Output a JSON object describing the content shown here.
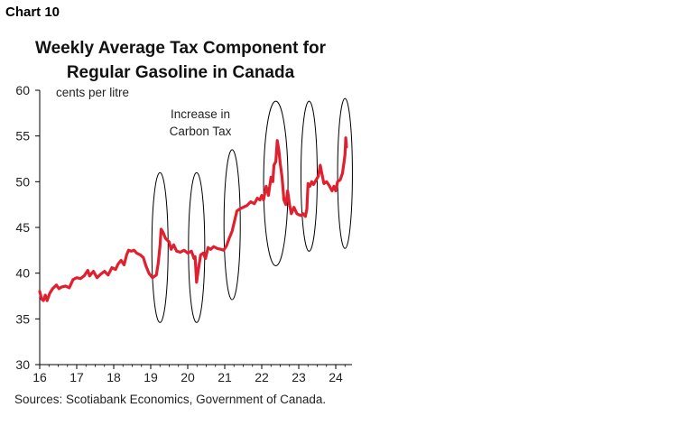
{
  "chart_label": "Chart 10",
  "title_line1": "Weekly Average Tax Component for",
  "title_line2": "Regular Gasoline in Canada",
  "source": "Sources: Scotiabank Economics, Government of Canada.",
  "annotation_line1": "Increase in",
  "annotation_line2": "Carbon Tax",
  "colors": {
    "line": "#e0202e",
    "axis": "#000000",
    "ellipse": "#000000"
  },
  "chart_data": {
    "type": "line",
    "title": "Weekly Average Tax Component for Regular Gasoline in Canada",
    "ylabel": "cents per litre",
    "xlabel": "",
    "ylim": [
      30,
      60
    ],
    "xlim": [
      2016,
      2024.35
    ],
    "y_ticks": [
      30,
      35,
      40,
      45,
      50,
      55,
      60
    ],
    "x_ticks": [
      {
        "value": 2016,
        "label": "16"
      },
      {
        "value": 2017,
        "label": "17"
      },
      {
        "value": 2018,
        "label": "18"
      },
      {
        "value": 2019,
        "label": "19"
      },
      {
        "value": 2020,
        "label": "20"
      },
      {
        "value": 2021,
        "label": "21"
      },
      {
        "value": 2022,
        "label": "22"
      },
      {
        "value": 2023,
        "label": "23"
      },
      {
        "value": 2024,
        "label": "24"
      }
    ],
    "grid": false,
    "legend": "none",
    "series": [
      {
        "points": [
          [
            2016.0,
            38.0
          ],
          [
            2016.05,
            37.2
          ],
          [
            2016.1,
            37.0
          ],
          [
            2016.15,
            37.6
          ],
          [
            2016.2,
            37.0
          ],
          [
            2016.27,
            37.8
          ],
          [
            2016.35,
            38.3
          ],
          [
            2016.45,
            38.7
          ],
          [
            2016.52,
            38.3
          ],
          [
            2016.6,
            38.5
          ],
          [
            2016.7,
            38.6
          ],
          [
            2016.8,
            38.4
          ],
          [
            2016.9,
            39.3
          ],
          [
            2017.0,
            39.5
          ],
          [
            2017.1,
            39.4
          ],
          [
            2017.2,
            39.7
          ],
          [
            2017.3,
            40.3
          ],
          [
            2017.35,
            39.7
          ],
          [
            2017.45,
            40.2
          ],
          [
            2017.55,
            39.5
          ],
          [
            2017.65,
            39.9
          ],
          [
            2017.75,
            40.2
          ],
          [
            2017.85,
            39.8
          ],
          [
            2017.95,
            40.6
          ],
          [
            2018.05,
            40.4
          ],
          [
            2018.12,
            41.0
          ],
          [
            2018.2,
            41.4
          ],
          [
            2018.28,
            40.9
          ],
          [
            2018.35,
            42.0
          ],
          [
            2018.4,
            42.5
          ],
          [
            2018.48,
            42.4
          ],
          [
            2018.55,
            42.5
          ],
          [
            2018.62,
            42.2
          ],
          [
            2018.72,
            42.0
          ],
          [
            2018.8,
            41.7
          ],
          [
            2018.87,
            40.8
          ],
          [
            2018.95,
            40.0
          ],
          [
            2019.05,
            39.5
          ],
          [
            2019.15,
            39.8
          ],
          [
            2019.2,
            41.0
          ],
          [
            2019.25,
            43.0
          ],
          [
            2019.28,
            44.8
          ],
          [
            2019.33,
            44.5
          ],
          [
            2019.4,
            43.8
          ],
          [
            2019.5,
            43.4
          ],
          [
            2019.55,
            42.6
          ],
          [
            2019.62,
            43.1
          ],
          [
            2019.7,
            42.4
          ],
          [
            2019.8,
            42.3
          ],
          [
            2019.9,
            42.5
          ],
          [
            2020.0,
            42.2
          ],
          [
            2020.1,
            42.4
          ],
          [
            2020.17,
            41.6
          ],
          [
            2020.2,
            41.8
          ],
          [
            2020.24,
            39.0
          ],
          [
            2020.28,
            40.2
          ],
          [
            2020.35,
            42.0
          ],
          [
            2020.42,
            42.2
          ],
          [
            2020.48,
            41.6
          ],
          [
            2020.55,
            42.8
          ],
          [
            2020.62,
            42.6
          ],
          [
            2020.7,
            42.9
          ],
          [
            2020.8,
            42.7
          ],
          [
            2020.9,
            42.6
          ],
          [
            2020.97,
            42.5
          ],
          [
            2021.05,
            43.0
          ],
          [
            2021.12,
            43.8
          ],
          [
            2021.2,
            44.6
          ],
          [
            2021.27,
            45.8
          ],
          [
            2021.33,
            46.8
          ],
          [
            2021.4,
            47.0
          ],
          [
            2021.5,
            47.2
          ],
          [
            2021.6,
            47.4
          ],
          [
            2021.7,
            47.8
          ],
          [
            2021.8,
            47.6
          ],
          [
            2021.88,
            48.2
          ],
          [
            2021.95,
            48.0
          ],
          [
            2022.0,
            48.5
          ],
          [
            2022.05,
            48.0
          ],
          [
            2022.12,
            49.5
          ],
          [
            2022.18,
            48.5
          ],
          [
            2022.25,
            50.5
          ],
          [
            2022.3,
            50.0
          ],
          [
            2022.33,
            51.8
          ],
          [
            2022.38,
            52.2
          ],
          [
            2022.42,
            54.5
          ],
          [
            2022.46,
            53.5
          ],
          [
            2022.5,
            52.0
          ],
          [
            2022.55,
            50.5
          ],
          [
            2022.6,
            48.0
          ],
          [
            2022.65,
            47.5
          ],
          [
            2022.7,
            49.0
          ],
          [
            2022.75,
            47.5
          ],
          [
            2022.8,
            46.5
          ],
          [
            2022.87,
            47.2
          ],
          [
            2022.95,
            46.5
          ],
          [
            2023.05,
            46.3
          ],
          [
            2023.12,
            46.5
          ],
          [
            2023.18,
            46.2
          ],
          [
            2023.22,
            47.0
          ],
          [
            2023.25,
            49.8
          ],
          [
            2023.3,
            49.5
          ],
          [
            2023.35,
            50.0
          ],
          [
            2023.4,
            49.7
          ],
          [
            2023.47,
            50.2
          ],
          [
            2023.53,
            50.6
          ],
          [
            2023.58,
            51.8
          ],
          [
            2023.63,
            50.8
          ],
          [
            2023.68,
            49.8
          ],
          [
            2023.75,
            50.0
          ],
          [
            2023.82,
            49.6
          ],
          [
            2023.9,
            49.0
          ],
          [
            2023.95,
            49.5
          ],
          [
            2024.0,
            49.0
          ],
          [
            2024.05,
            50.0
          ],
          [
            2024.12,
            50.2
          ],
          [
            2024.18,
            50.9
          ],
          [
            2024.22,
            52.0
          ],
          [
            2024.25,
            53.0
          ],
          [
            2024.27,
            54.8
          ],
          [
            2024.29,
            53.8
          ]
        ]
      }
    ],
    "ellipses": [
      {
        "cx": 2019.25,
        "cy": 42.8,
        "rx": 0.22,
        "ry": 8.2
      },
      {
        "cx": 2020.24,
        "cy": 42.8,
        "rx": 0.22,
        "ry": 8.2
      },
      {
        "cx": 2021.2,
        "cy": 45.3,
        "rx": 0.22,
        "ry": 8.2
      },
      {
        "cx": 2022.38,
        "cy": 49.8,
        "rx": 0.33,
        "ry": 9.0
      },
      {
        "cx": 2023.28,
        "cy": 50.6,
        "rx": 0.22,
        "ry": 8.2
      },
      {
        "cx": 2024.25,
        "cy": 50.9,
        "rx": 0.2,
        "ry": 8.2
      }
    ]
  }
}
